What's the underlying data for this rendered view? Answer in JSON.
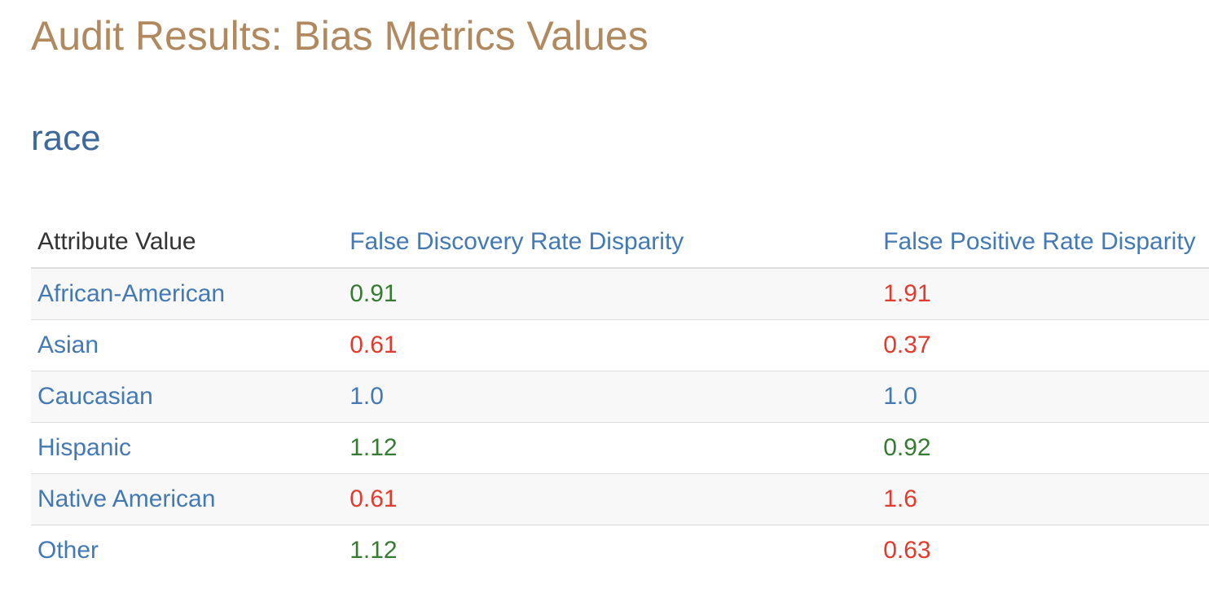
{
  "page": {
    "title": "Audit Results: Bias Metrics Values",
    "section": "race"
  },
  "colors": {
    "title": "#b1895f",
    "section": "#3d699b",
    "link": "#4379b4",
    "header-text": "#333333",
    "positive": "#367b32",
    "negative": "#e23b2e",
    "reference": "#4379b4",
    "row-stripe": "#f8f8f8",
    "border": "#dddddd"
  },
  "table": {
    "columns": [
      "Attribute Value",
      "False Discovery Rate Disparity",
      "False Positive Rate Disparity"
    ],
    "rows": [
      {
        "attribute_value": "African-American",
        "fdr": {
          "value": "0.91",
          "status": "positive"
        },
        "fpr": {
          "value": "1.91",
          "status": "negative"
        }
      },
      {
        "attribute_value": "Asian",
        "fdr": {
          "value": "0.61",
          "status": "negative"
        },
        "fpr": {
          "value": "0.37",
          "status": "negative"
        }
      },
      {
        "attribute_value": "Caucasian",
        "fdr": {
          "value": "1.0",
          "status": "reference"
        },
        "fpr": {
          "value": "1.0",
          "status": "reference"
        }
      },
      {
        "attribute_value": "Hispanic",
        "fdr": {
          "value": "1.12",
          "status": "positive"
        },
        "fpr": {
          "value": "0.92",
          "status": "positive"
        }
      },
      {
        "attribute_value": "Native American",
        "fdr": {
          "value": "0.61",
          "status": "negative"
        },
        "fpr": {
          "value": "1.6",
          "status": "negative"
        }
      },
      {
        "attribute_value": "Other",
        "fdr": {
          "value": "1.12",
          "status": "positive"
        },
        "fpr": {
          "value": "0.63",
          "status": "negative"
        }
      }
    ]
  }
}
